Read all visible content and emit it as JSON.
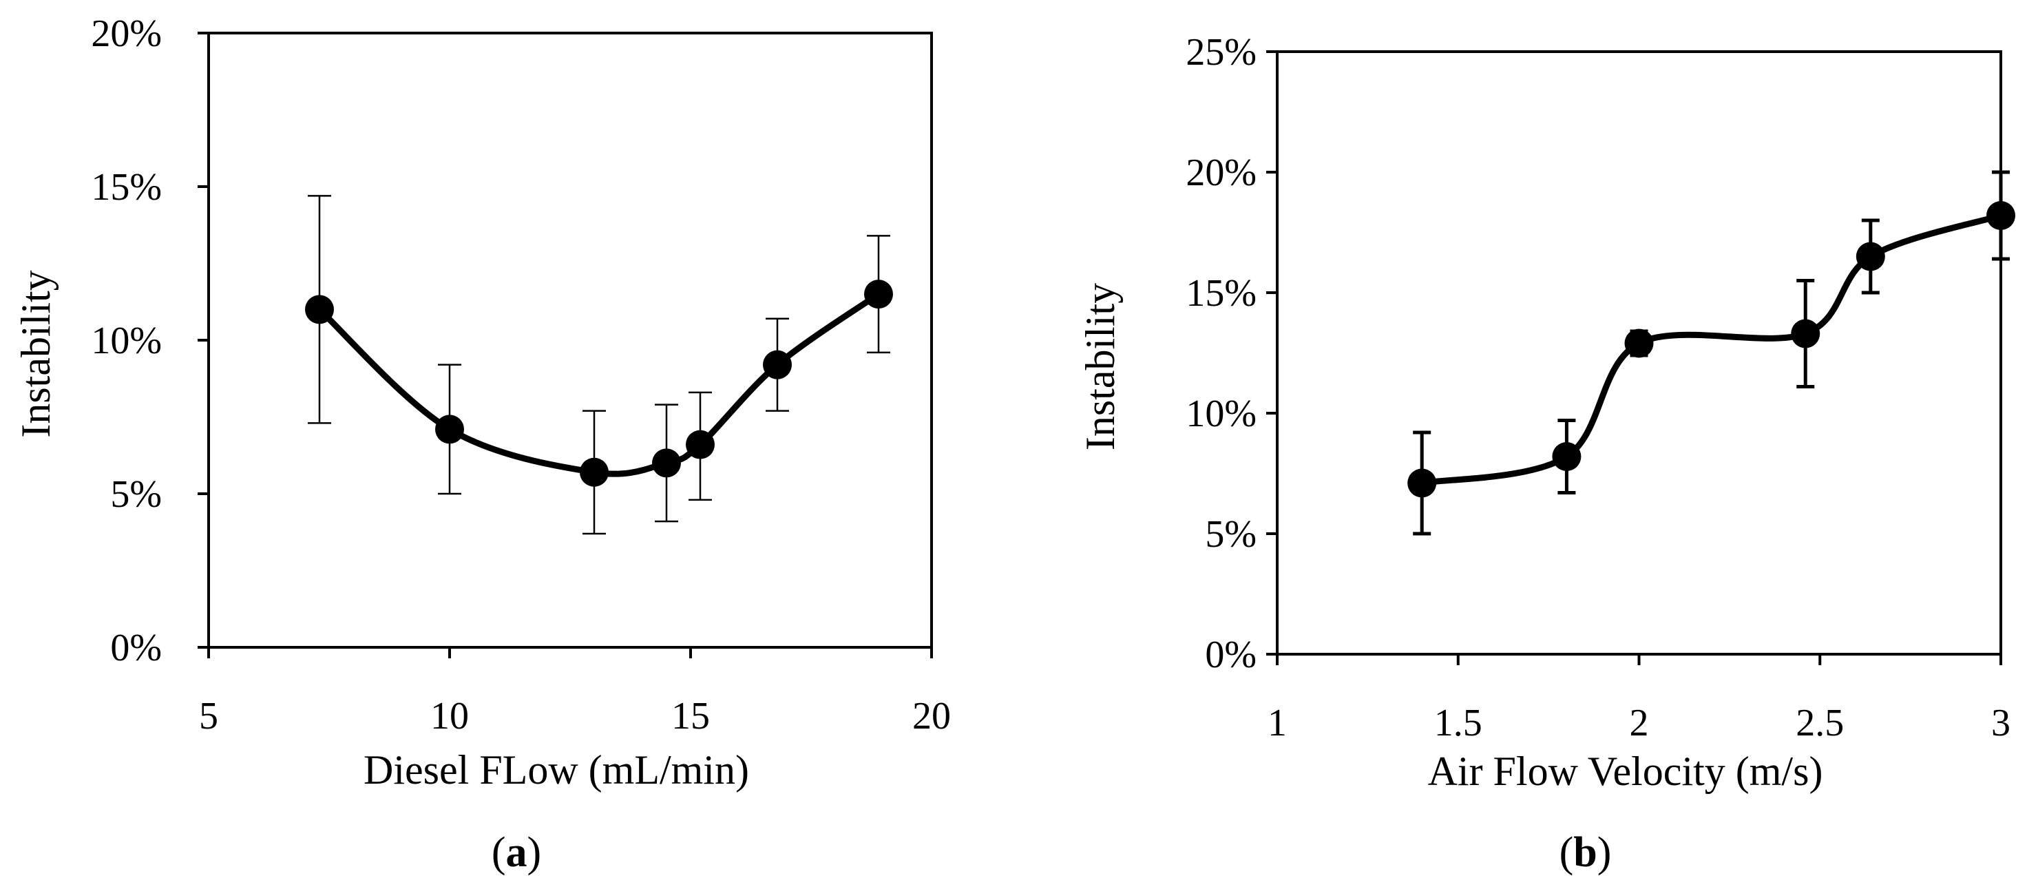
{
  "chart_data": [
    {
      "type": "line",
      "panel_label": "a",
      "title": "",
      "xlabel": "Diesel FLow (mL/min)",
      "ylabel": "Instability",
      "xlim": [
        5,
        20
      ],
      "ylim": [
        0,
        0.2
      ],
      "xticks": [
        5,
        10,
        15,
        20
      ],
      "xtick_labels": [
        "5",
        "10",
        "15",
        "20"
      ],
      "yticks": [
        0,
        0.05,
        0.1,
        0.15,
        0.2
      ],
      "ytick_labels": [
        "0%",
        "5%",
        "10%",
        "15%",
        "20%"
      ],
      "grid": false,
      "smooth": true,
      "series": [
        {
          "name": "Instability",
          "x": [
            7.3,
            10.0,
            13.0,
            14.5,
            15.2,
            16.8,
            18.9
          ],
          "y": [
            0.11,
            0.071,
            0.057,
            0.06,
            0.066,
            0.092,
            0.115
          ],
          "err_low": [
            0.037,
            0.021,
            0.02,
            0.019,
            0.018,
            0.015,
            0.019
          ],
          "err_high": [
            0.037,
            0.021,
            0.02,
            0.019,
            0.017,
            0.015,
            0.019
          ]
        }
      ]
    },
    {
      "type": "line",
      "panel_label": "b",
      "title": "",
      "xlabel": "Air Flow Velocity (m/s)",
      "ylabel": "Instability",
      "xlim": [
        1,
        3
      ],
      "ylim": [
        0,
        0.25
      ],
      "xticks": [
        1,
        1.5,
        2,
        2.5,
        3
      ],
      "xtick_labels": [
        "1",
        "1.5",
        "2",
        "2.5",
        "3"
      ],
      "yticks": [
        0,
        0.05,
        0.1,
        0.15,
        0.2,
        0.25
      ],
      "ytick_labels": [
        "0%",
        "5%",
        "10%",
        "15%",
        "20%",
        "25%"
      ],
      "grid": false,
      "smooth": true,
      "series": [
        {
          "name": "Instability",
          "x": [
            1.4,
            1.8,
            2.0,
            2.46,
            2.64,
            3.0
          ],
          "y": [
            0.071,
            0.082,
            0.129,
            0.133,
            0.165,
            0.182
          ],
          "err_low": [
            0.021,
            0.015,
            0.005,
            0.022,
            0.015,
            0.018
          ],
          "err_high": [
            0.021,
            0.015,
            0.005,
            0.022,
            0.015,
            0.018
          ]
        }
      ]
    }
  ]
}
